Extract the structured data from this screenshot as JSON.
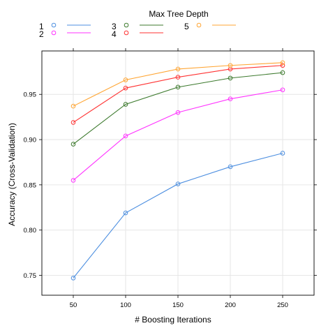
{
  "chart_data": {
    "type": "line",
    "title": "",
    "xlabel": "# Boosting Iterations",
    "ylabel": "Accuracy (Cross-Validation)",
    "legend_title": "Max Tree Depth",
    "legend_placement": "top",
    "grid": true,
    "x": [
      50,
      100,
      150,
      200,
      250
    ],
    "xlim": [
      20,
      280
    ],
    "ylim": [
      0.728,
      0.998
    ],
    "xticks": [
      "50",
      "100",
      "150",
      "200",
      "250"
    ],
    "yticks": [
      "0.75",
      "0.80",
      "0.85",
      "0.90",
      "0.95"
    ],
    "series": [
      {
        "name": "1",
        "color": "#4d8fe0",
        "values": [
          0.747,
          0.819,
          0.851,
          0.87,
          0.885
        ]
      },
      {
        "name": "2",
        "color": "#ff33ff",
        "values": [
          0.855,
          0.904,
          0.93,
          0.945,
          0.955
        ]
      },
      {
        "name": "3",
        "color": "#3d7a2e",
        "values": [
          0.895,
          0.939,
          0.958,
          0.968,
          0.974
        ]
      },
      {
        "name": "4",
        "color": "#ff3333",
        "values": [
          0.919,
          0.957,
          0.969,
          0.978,
          0.982
        ]
      },
      {
        "name": "5",
        "color": "#ffa533",
        "values": [
          0.937,
          0.966,
          0.978,
          0.982,
          0.985
        ]
      }
    ]
  }
}
